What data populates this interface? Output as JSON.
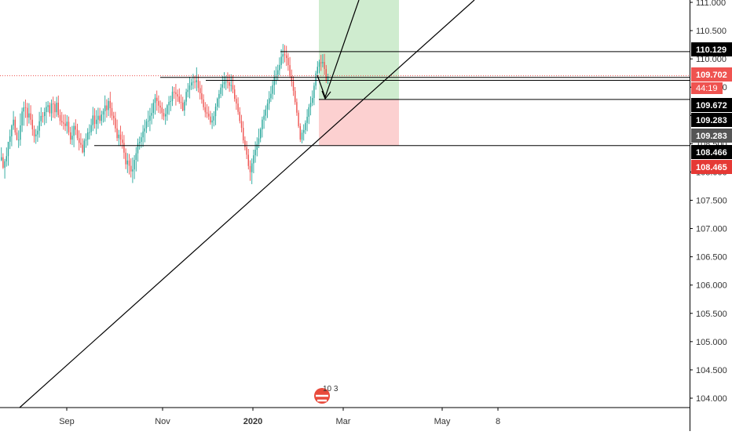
{
  "chart_data": {
    "type": "candlestick",
    "y_axis": {
      "range": [
        103.86,
        111.07
      ],
      "ticks": [
        "104.000",
        "104.500",
        "105.000",
        "105.500",
        "106.000",
        "106.500",
        "107.000",
        "107.500",
        "108.000",
        "108.500",
        "109.000",
        "109.500",
        "110.000",
        "110.500",
        "111.000"
      ]
    },
    "x_axis": {
      "labels": [
        {
          "text": "Sep",
          "bold": false
        },
        {
          "text": "Nov",
          "bold": false
        },
        {
          "text": "2020",
          "bold": true
        },
        {
          "text": "Mar",
          "bold": false
        },
        {
          "text": "May",
          "bold": false
        },
        {
          "text": "8",
          "bold": false
        }
      ]
    },
    "price_tags": [
      {
        "value": 110.129,
        "label": "110.129",
        "bg": "#000000",
        "fg": "#ffffff"
      },
      {
        "value": 109.702,
        "label": "109.702",
        "bg": "#ef5350",
        "fg": "#ffffff"
      },
      {
        "value": 109.672,
        "label": "109.672",
        "bg": "#000000",
        "fg": "#ffffff"
      },
      {
        "value": 109.283,
        "label": "109.283",
        "bg": "#000000",
        "fg": "#ffffff"
      },
      {
        "value": 109.283,
        "label": "109.283",
        "bg": "#555555",
        "fg": "#ffffff"
      },
      {
        "value": 108.466,
        "label": "108.466",
        "bg": "#000000",
        "fg": "#ffffff"
      },
      {
        "value": 108.465,
        "label": "108.465",
        "bg": "#e53935",
        "fg": "#ffffff"
      }
    ],
    "countdown": "44:19",
    "current_price": 109.702,
    "horizontal_levels": [
      110.129,
      109.672,
      109.283,
      108.466
    ],
    "position": {
      "entry": 109.283,
      "target": 111.07,
      "stop": 108.466
    },
    "colors": {
      "up": "#26a69a",
      "down": "#ef5350",
      "target_zone": "#cfeccf",
      "stop_zone": "#fcd0d0",
      "current_price_line": "#ef5350"
    },
    "ohlc": [
      [
        108.207,
        108.436,
        108.191,
        108.261
      ],
      [
        108.261,
        108.331,
        108.054,
        108.076
      ],
      [
        108.076,
        108.231,
        107.883,
        108.19
      ],
      [
        108.19,
        108.434,
        108.094,
        108.28
      ],
      [
        108.28,
        108.535,
        108.11,
        108.534
      ],
      [
        108.534,
        108.75,
        108.406,
        108.631
      ],
      [
        108.631,
        108.84,
        108.455,
        108.82
      ],
      [
        108.82,
        109.078,
        108.745,
        108.924
      ],
      [
        108.924,
        108.981,
        108.652,
        108.699
      ],
      [
        108.699,
        108.784,
        108.559,
        108.567
      ],
      [
        108.567,
        108.737,
        108.426,
        108.57
      ],
      [
        108.57,
        109.036,
        108.464,
        108.824
      ],
      [
        108.824,
        109.138,
        108.707,
        109.069
      ],
      [
        109.069,
        109.245,
        108.818,
        109.142
      ],
      [
        109.142,
        109.281,
        108.956,
        109.134
      ],
      [
        109.134,
        109.222,
        108.811,
        108.963
      ],
      [
        108.963,
        109.217,
        108.856,
        109.037
      ],
      [
        109.037,
        109.181,
        108.829,
        108.924
      ],
      [
        108.924,
        109.023,
        108.64,
        108.755
      ],
      [
        108.755,
        108.822,
        108.521,
        108.631
      ],
      [
        108.631,
        108.762,
        108.498,
        108.663
      ],
      [
        108.663,
        108.818,
        108.533,
        108.73
      ],
      [
        108.73,
        109.063,
        108.607,
        108.897
      ],
      [
        108.897,
        109.143,
        108.81,
        108.992
      ],
      [
        108.992,
        109.06,
        108.873,
        108.989
      ],
      [
        108.989,
        109.138,
        108.831,
        109.06
      ],
      [
        109.06,
        109.241,
        108.863,
        109.151
      ],
      [
        109.151,
        109.254,
        109.057,
        109.18
      ],
      [
        109.18,
        109.231,
        108.979,
        109.038
      ],
      [
        109.038,
        109.283,
        108.905,
        109.212
      ],
      [
        109.212,
        109.333,
        108.958,
        109.203
      ],
      [
        109.203,
        109.252,
        108.949,
        109.057
      ],
      [
        109.057,
        109.33,
        108.974,
        109.225
      ],
      [
        109.225,
        109.352,
        108.962,
        109.007
      ],
      [
        109.007,
        109.108,
        108.831,
        108.902
      ],
      [
        108.902,
        109.063,
        108.812,
        108.876
      ],
      [
        108.876,
        109.015,
        108.747,
        108.856
      ],
      [
        108.856,
        109.019,
        108.724,
        108.813
      ],
      [
        108.813,
        109.005,
        108.677,
        108.888
      ],
      [
        108.888,
        108.982,
        108.651,
        108.701
      ],
      [
        108.701,
        108.799,
        108.49,
        108.572
      ],
      [
        108.572,
        108.816,
        108.478,
        108.641
      ],
      [
        108.641,
        108.874,
        108.438,
        108.814
      ],
      [
        108.814,
        108.933,
        108.652,
        108.749
      ],
      [
        108.749,
        108.854,
        108.558,
        108.598
      ],
      [
        108.598,
        108.737,
        108.382,
        108.514
      ],
      [
        108.514,
        108.687,
        108.426,
        108.483
      ],
      [
        108.483,
        108.594,
        108.329,
        108.347
      ],
      [
        108.347,
        108.594,
        108.277,
        108.556
      ],
      [
        108.556,
        108.683,
        108.427,
        108.574
      ],
      [
        108.574,
        108.776,
        108.467,
        108.7
      ],
      [
        108.7,
        108.844,
        108.576,
        108.704
      ],
      [
        108.704,
        108.942,
        108.645,
        108.829
      ],
      [
        108.829,
        109.151,
        108.723,
        108.999
      ],
      [
        108.999,
        109.127,
        108.766,
        108.849
      ],
      [
        108.849,
        109.095,
        108.67,
        108.924
      ],
      [
        108.924,
        109.137,
        108.763,
        108.995
      ],
      [
        108.995,
        109.134,
        108.856,
        108.904
      ],
      [
        108.904,
        109.084,
        108.82,
        109.015
      ],
      [
        109.015,
        109.126,
        108.874,
        109.076
      ],
      [
        109.076,
        109.354,
        108.887,
        109.177
      ],
      [
        109.177,
        109.286,
        108.96,
        109.095
      ],
      [
        109.095,
        109.311,
        108.989,
        109.255
      ],
      [
        109.255,
        109.419,
        108.955,
        109.129
      ],
      [
        109.129,
        109.231,
        108.916,
        108.995
      ],
      [
        108.995,
        109.064,
        108.829,
        108.951
      ],
      [
        108.951,
        109.064,
        108.702,
        108.77
      ],
      [
        108.77,
        108.927,
        108.546,
        108.599
      ],
      [
        108.599,
        108.745,
        108.459,
        108.661
      ],
      [
        108.661,
        108.818,
        108.458,
        108.572
      ],
      [
        108.572,
        108.716,
        108.412,
        108.514
      ],
      [
        108.514,
        108.654,
        108.231,
        108.342
      ],
      [
        108.342,
        108.417,
        108.05,
        108.135
      ],
      [
        108.135,
        108.334,
        107.981,
        108.203
      ],
      [
        108.203,
        108.32,
        107.956,
        108.109
      ],
      [
        108.109,
        108.244,
        107.903,
        108.01
      ],
      [
        108.01,
        108.255,
        107.805,
        108.045
      ],
      [
        108.045,
        108.298,
        107.874,
        108.213
      ],
      [
        108.213,
        108.442,
        108.01,
        108.33
      ],
      [
        108.33,
        108.591,
        108.183,
        108.509
      ],
      [
        108.509,
        108.627,
        108.396,
        108.533
      ],
      [
        108.533,
        108.697,
        108.427,
        108.613
      ],
      [
        108.613,
        108.831,
        108.445,
        108.716
      ],
      [
        108.716,
        108.925,
        108.524,
        108.772
      ],
      [
        108.772,
        108.939,
        108.689,
        108.897
      ],
      [
        108.897,
        109.085,
        108.796,
        108.907
      ],
      [
        108.907,
        109.133,
        108.722,
        108.996
      ],
      [
        108.996,
        109.215,
        108.842,
        109.044
      ],
      [
        109.044,
        109.287,
        108.941,
        109.221
      ],
      [
        109.221,
        109.38,
        109.015,
        109.313
      ],
      [
        109.313,
        109.44,
        109.083,
        109.256
      ],
      [
        109.256,
        109.354,
        109.045,
        109.173
      ],
      [
        109.173,
        109.264,
        109.028,
        109.14
      ],
      [
        109.14,
        109.234,
        108.93,
        109.043
      ],
      [
        109.043,
        109.119,
        108.915,
        108.983
      ],
      [
        108.983,
        109.135,
        108.835,
        109.023
      ],
      [
        109.023,
        109.2,
        108.906,
        109.179
      ],
      [
        109.179,
        109.344,
        109.01,
        109.24
      ],
      [
        109.24,
        109.35,
        109.076,
        109.252
      ],
      [
        109.252,
        109.515,
        109.166,
        109.419
      ],
      [
        109.419,
        109.504,
        109.293,
        109.41
      ],
      [
        109.41,
        109.558,
        109.175,
        109.376
      ],
      [
        109.376,
        109.459,
        109.241,
        109.335
      ],
      [
        109.335,
        109.479,
        109.204,
        109.239
      ],
      [
        109.239,
        109.372,
        109.114,
        109.226
      ],
      [
        109.226,
        109.331,
        109.073,
        109.087
      ],
      [
        109.087,
        109.28,
        108.992,
        109.244
      ],
      [
        109.244,
        109.473,
        109.176,
        109.416
      ],
      [
        109.416,
        109.573,
        109.319,
        109.452
      ],
      [
        109.452,
        109.683,
        109.302,
        109.531
      ],
      [
        109.531,
        109.653,
        109.45,
        109.583
      ],
      [
        109.583,
        109.736,
        109.462,
        109.595
      ],
      [
        109.595,
        109.703,
        109.477,
        109.588
      ],
      [
        109.588,
        109.851,
        109.431,
        109.623
      ],
      [
        109.623,
        109.726,
        109.406,
        109.484
      ],
      [
        109.484,
        109.61,
        109.283,
        109.393
      ],
      [
        109.393,
        109.54,
        109.207,
        109.283
      ],
      [
        109.283,
        109.374,
        109.092,
        109.146
      ],
      [
        109.146,
        109.236,
        108.966,
        109.056
      ],
      [
        109.056,
        109.2,
        108.956,
        109.03
      ],
      [
        109.03,
        109.162,
        108.924,
        108.981
      ],
      [
        108.981,
        109.08,
        108.834,
        108.876
      ],
      [
        108.876,
        109.043,
        108.76,
        108.91
      ],
      [
        108.91,
        109.074,
        108.806,
        108.988
      ],
      [
        108.988,
        109.216,
        108.827,
        109.155
      ],
      [
        109.155,
        109.318,
        109.088,
        109.297
      ],
      [
        109.297,
        109.451,
        109.133,
        109.38
      ],
      [
        109.38,
        109.557,
        109.307,
        109.492
      ],
      [
        109.492,
        109.699,
        109.344,
        109.551
      ],
      [
        109.551,
        109.764,
        109.479,
        109.594
      ],
      [
        109.594,
        109.704,
        109.451,
        109.602
      ],
      [
        109.602,
        109.762,
        109.476,
        109.586
      ],
      [
        109.586,
        109.727,
        109.417,
        109.524
      ],
      [
        109.524,
        109.727,
        109.422,
        109.537
      ],
      [
        109.537,
        109.712,
        109.392,
        109.459
      ],
      [
        109.459,
        109.539,
        109.244,
        109.295
      ],
      [
        109.295,
        109.363,
        109.099,
        109.21
      ],
      [
        109.21,
        109.32,
        109.011,
        109.064
      ],
      [
        109.064,
        109.146,
        108.86,
        108.902
      ],
      [
        108.902,
        109.011,
        108.701,
        108.781
      ],
      [
        108.781,
        108.899,
        108.504,
        108.559
      ],
      [
        108.559,
        108.629,
        108.382,
        108.439
      ],
      [
        108.439,
        108.548,
        108.228,
        108.305
      ],
      [
        108.305,
        108.408,
        108.045,
        108.106
      ],
      [
        108.106,
        108.207,
        107.843,
        107.997
      ],
      [
        107.997,
        108.239,
        107.785,
        108.153
      ],
      [
        108.153,
        108.394,
        107.978,
        108.295
      ],
      [
        108.295,
        108.541,
        108.163,
        108.393
      ],
      [
        108.393,
        108.614,
        108.277,
        108.495
      ],
      [
        108.495,
        108.766,
        108.421,
        108.595
      ],
      [
        108.595,
        108.786,
        108.525,
        108.755
      ],
      [
        108.755,
        108.979,
        108.61,
        108.926
      ],
      [
        108.926,
        109.102,
        108.764,
        108.996
      ],
      [
        108.996,
        109.177,
        108.905,
        109.105
      ],
      [
        109.105,
        109.286,
        108.953,
        109.209
      ],
      [
        109.209,
        109.43,
        109.095,
        109.305
      ],
      [
        109.305,
        109.519,
        109.24,
        109.383
      ],
      [
        109.383,
        109.629,
        109.284,
        109.536
      ],
      [
        109.536,
        109.799,
        109.366,
        109.682
      ],
      [
        109.682,
        109.866,
        109.546,
        109.722
      ],
      [
        109.722,
        109.897,
        109.614,
        109.801
      ],
      [
        109.801,
        110.027,
        109.705,
        109.893
      ],
      [
        109.893,
        110.171,
        109.826,
        110.039
      ],
      [
        110.039,
        110.264,
        109.917,
        110.083
      ],
      [
        110.083,
        110.247,
        109.938,
        110.064
      ],
      [
        110.064,
        110.232,
        109.875,
        110.016
      ],
      [
        110.016,
        110.105,
        109.79,
        109.889
      ],
      [
        109.889,
        110.033,
        109.663,
        109.697
      ],
      [
        109.697,
        109.812,
        109.511,
        109.603
      ],
      [
        109.603,
        109.696,
        109.343,
        109.436
      ],
      [
        109.436,
        109.503,
        109.188,
        109.236
      ],
      [
        109.236,
        109.3,
        108.993,
        109.049
      ],
      [
        109.049,
        109.095,
        108.779,
        108.811
      ],
      [
        108.811,
        108.861,
        108.53,
        108.573
      ],
      [
        108.573,
        108.747,
        108.507,
        108.694
      ],
      [
        108.694,
        108.844,
        108.555,
        108.741
      ],
      [
        108.741,
        108.913,
        108.67,
        108.868
      ],
      [
        108.868,
        109.111,
        108.72,
        108.976
      ],
      [
        108.976,
        109.203,
        108.848,
        109.146
      ],
      [
        109.146,
        109.338,
        109.0,
        109.222
      ],
      [
        109.222,
        109.443,
        109.166,
        109.309
      ],
      [
        109.309,
        109.581,
        109.181,
        109.526
      ],
      [
        109.526,
        109.789,
        109.455,
        109.742
      ],
      [
        109.742,
        109.962,
        109.655,
        109.86
      ],
      [
        109.86,
        109.986,
        109.745,
        109.941
      ],
      [
        109.941,
        110.073,
        109.787,
        109.924
      ],
      [
        109.924,
        110.084,
        109.852,
        109.946
      ],
      [
        109.946,
        110.089,
        109.716,
        109.821
      ],
      [
        109.821,
        109.892,
        109.574,
        109.627
      ],
      [
        109.627,
        109.737,
        109.557,
        109.702
      ]
    ]
  }
}
